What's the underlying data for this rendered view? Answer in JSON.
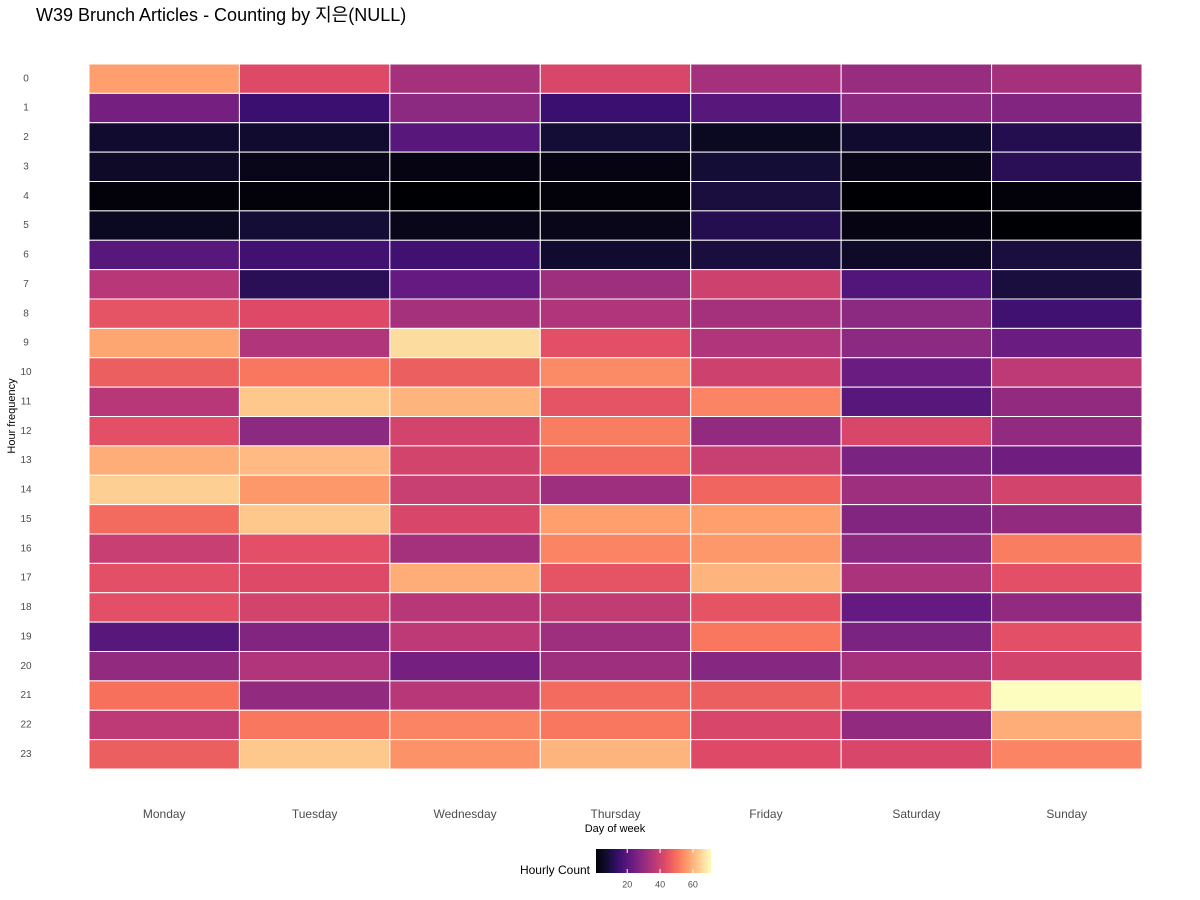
{
  "chart_data": {
    "type": "heatmap",
    "title": "W39 Brunch Articles - Counting by 지은(NULL)",
    "x_label": "Day of week",
    "y_label": "Hour frequency",
    "categories": [
      "Monday",
      "Tuesday",
      "Wednesday",
      "Thursday",
      "Friday",
      "Saturday",
      "Sunday"
    ],
    "y_categories": [
      0,
      1,
      2,
      3,
      4,
      5,
      6,
      7,
      8,
      9,
      10,
      11,
      12,
      13,
      14,
      15,
      16,
      17,
      18,
      19,
      20,
      21,
      22,
      23
    ],
    "values": [
      [
        57,
        43,
        33,
        42,
        33,
        31,
        33
      ],
      [
        25,
        15,
        29,
        15,
        20,
        29,
        27
      ],
      [
        7,
        7,
        20,
        8,
        5,
        7,
        11
      ],
      [
        6,
        4,
        3,
        3,
        8,
        4,
        12
      ],
      [
        2,
        2,
        1,
        2,
        9,
        1,
        2
      ],
      [
        5,
        8,
        4,
        4,
        11,
        3,
        1
      ],
      [
        20,
        16,
        16,
        7,
        9,
        6,
        9
      ],
      [
        36,
        12,
        22,
        32,
        40,
        19,
        9
      ],
      [
        45,
        43,
        33,
        35,
        33,
        29,
        16
      ],
      [
        58,
        35,
        66,
        44,
        35,
        29,
        23
      ],
      [
        47,
        51,
        47,
        54,
        40,
        23,
        37
      ],
      [
        36,
        63,
        60,
        45,
        53,
        20,
        30
      ],
      [
        44,
        29,
        41,
        52,
        30,
        42,
        30
      ],
      [
        59,
        61,
        41,
        49,
        39,
        26,
        24
      ],
      [
        64,
        56,
        39,
        32,
        48,
        32,
        41
      ],
      [
        49,
        63,
        42,
        57,
        57,
        27,
        30
      ],
      [
        39,
        44,
        33,
        53,
        56,
        29,
        52
      ],
      [
        44,
        43,
        59,
        45,
        60,
        34,
        44
      ],
      [
        44,
        41,
        36,
        38,
        45,
        22,
        30
      ],
      [
        20,
        27,
        37,
        32,
        51,
        26,
        44
      ],
      [
        30,
        35,
        25,
        32,
        28,
        33,
        41
      ],
      [
        50,
        30,
        36,
        49,
        47,
        44,
        71
      ],
      [
        37,
        51,
        53,
        51,
        42,
        30,
        59
      ],
      [
        47,
        63,
        55,
        60,
        43,
        42,
        53
      ]
    ],
    "colormap": "magma",
    "colorbar": {
      "title": "Hourly Count",
      "lim": [
        1,
        71
      ],
      "ticks": [
        20,
        40,
        60
      ]
    }
  }
}
